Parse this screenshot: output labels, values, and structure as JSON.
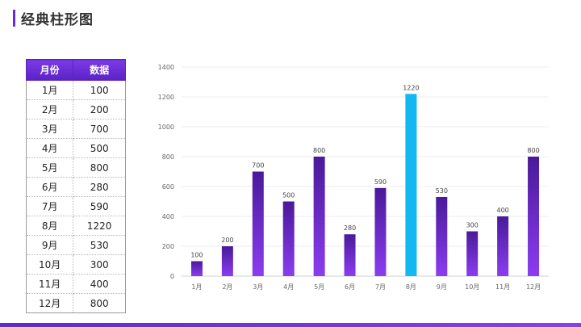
{
  "page": {
    "title": "经典柱形图"
  },
  "table": {
    "headers": [
      "月份",
      "数据"
    ],
    "rows": [
      [
        "1月",
        "100"
      ],
      [
        "2月",
        "200"
      ],
      [
        "3月",
        "700"
      ],
      [
        "4月",
        "500"
      ],
      [
        "5月",
        "800"
      ],
      [
        "6月",
        "280"
      ],
      [
        "7月",
        "590"
      ],
      [
        "8月",
        "1220"
      ],
      [
        "9月",
        "530"
      ],
      [
        "10月",
        "300"
      ],
      [
        "11月",
        "400"
      ],
      [
        "12月",
        "800"
      ]
    ]
  },
  "chart_data": {
    "type": "bar",
    "categories": [
      "1月",
      "2月",
      "3月",
      "4月",
      "5月",
      "6月",
      "7月",
      "8月",
      "9月",
      "10月",
      "11月",
      "12月"
    ],
    "values": [
      100,
      200,
      700,
      500,
      800,
      280,
      590,
      1220,
      530,
      300,
      400,
      800
    ],
    "title": "",
    "xlabel": "",
    "ylabel": "",
    "ylim": [
      0,
      1400
    ],
    "yticks": [
      0,
      200,
      400,
      600,
      800,
      1000,
      1200,
      1400
    ],
    "grid": true,
    "data_labels": true,
    "highlight_index": 7,
    "colors": {
      "bar_top": "#4a1a9a",
      "bar_bottom": "#8b3cf0",
      "highlight": "#12b8f2",
      "grid": "#ececec",
      "axis": "#d0d0d0"
    }
  }
}
